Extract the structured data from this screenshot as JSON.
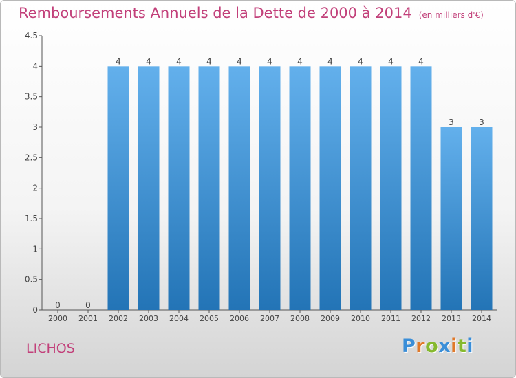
{
  "title": "Remboursements Annuels de la Dette de 2000 à 2014",
  "subtitle": "(en milliers d'€)",
  "place": "LICHOS",
  "logo": {
    "text": "Proxiti",
    "letter_colors": [
      "#3a8ed8",
      "#e0792a",
      "#86b92e",
      "#3a8ed8",
      "#e0792a",
      "#86b92e",
      "#3a8ed8"
    ]
  },
  "colors": {
    "title": "#c2407a",
    "bar_top": "#63b0ec",
    "bar_bottom": "#2374b6",
    "axis": "#555555",
    "label": "#444444"
  },
  "chart_data": {
    "type": "bar",
    "categories": [
      "2000",
      "2001",
      "2002",
      "2003",
      "2004",
      "2005",
      "2006",
      "2007",
      "2008",
      "2009",
      "2010",
      "2011",
      "2012",
      "2013",
      "2014"
    ],
    "values": [
      0,
      0,
      4,
      4,
      4,
      4,
      4,
      4,
      4,
      4,
      4,
      4,
      4,
      3,
      3
    ],
    "value_labels": [
      "0",
      "0",
      "4",
      "4",
      "4",
      "4",
      "4",
      "4",
      "4",
      "4",
      "4",
      "4",
      "4",
      "3",
      "3"
    ],
    "ylim": [
      0,
      4.5
    ],
    "yticks": [
      0,
      0.5,
      1,
      1.5,
      2,
      2.5,
      3,
      3.5,
      4,
      4.5
    ],
    "ytick_labels": [
      "0",
      "0.5",
      "1",
      "1.5",
      "2",
      "2.5",
      "3",
      "3.5",
      "4",
      "4.5"
    ],
    "grid": false,
    "legend": "none"
  }
}
